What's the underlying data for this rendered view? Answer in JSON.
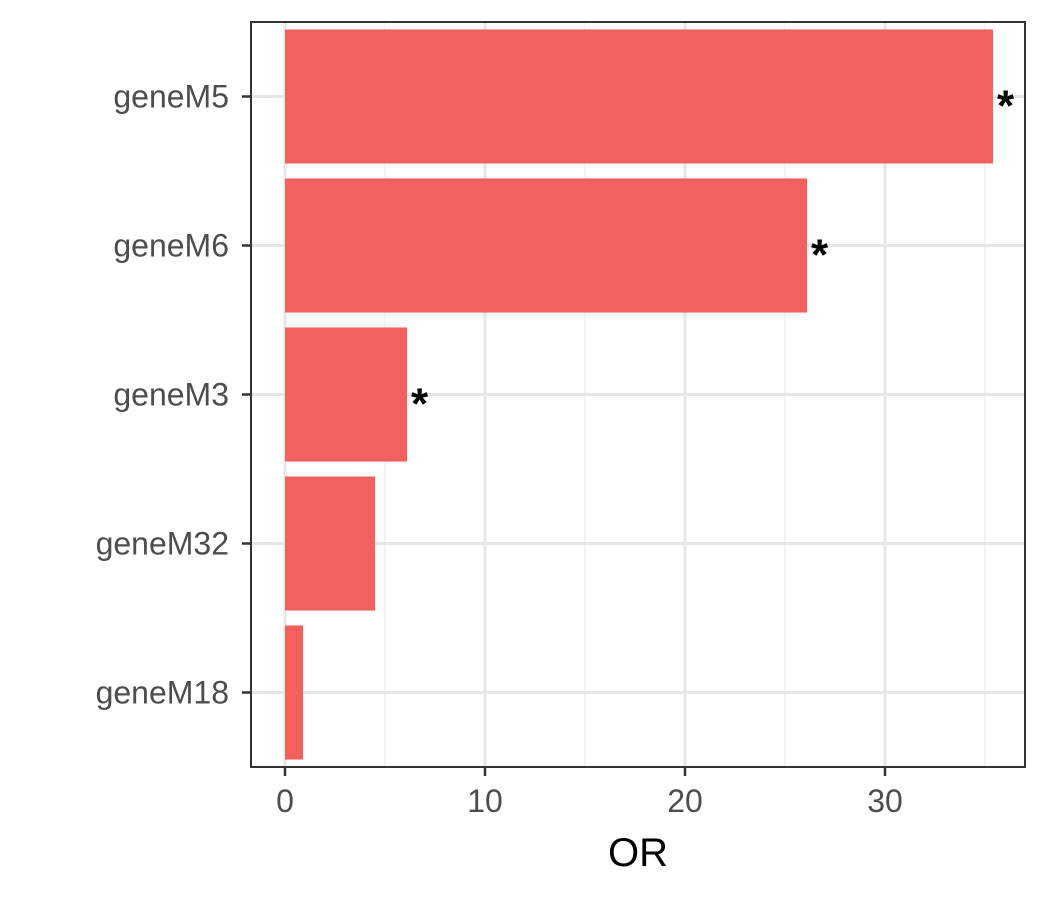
{
  "chart_data": {
    "type": "bar",
    "orientation": "horizontal",
    "categories": [
      "geneM5",
      "geneM6",
      "geneM3",
      "geneM32",
      "geneM18"
    ],
    "values": [
      35.4,
      26.1,
      6.1,
      4.5,
      0.9
    ],
    "significance": [
      "*",
      "*",
      "*",
      "",
      ""
    ],
    "xlabel": "OR",
    "ylabel": "",
    "title": "",
    "xlim": [
      -1.7,
      37
    ],
    "x_ticks": [
      0,
      10,
      20,
      30
    ],
    "grid": true,
    "legend": "none"
  },
  "colors": {
    "bar": "#F2615E",
    "grid_major": "#e6e6e6",
    "grid_minor": "#f0f0f0",
    "panel_border": "#333333",
    "tick": "#333333"
  }
}
